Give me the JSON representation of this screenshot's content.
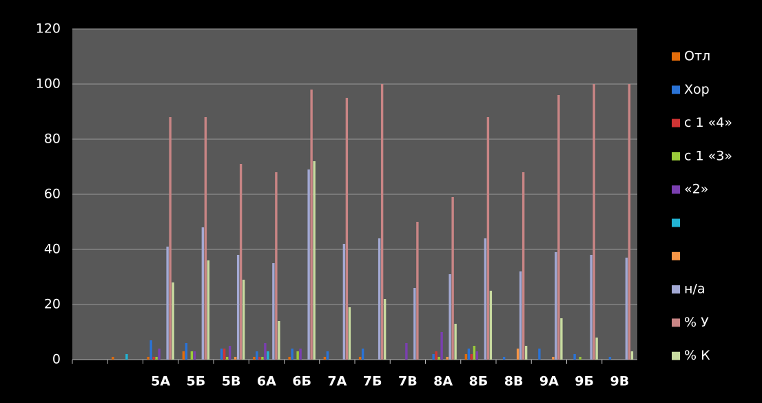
{
  "chart_data": {
    "type": "bar",
    "categories": [
      null,
      null,
      "5А",
      "5Б",
      "5В",
      "6А",
      "6Б",
      "7А",
      "7Б",
      "7В",
      "8А",
      "8Б",
      "8В",
      "9А",
      "9Б",
      "9В"
    ],
    "series": [
      {
        "name": "Отл",
        "color": "#e36c0a",
        "values": [
          0,
          1,
          1,
          3,
          0,
          1,
          1,
          1,
          1,
          0,
          0,
          2,
          0,
          0,
          0,
          0
        ]
      },
      {
        "name": "Хор",
        "color": "#2a73d6",
        "values": [
          0,
          0,
          7,
          6,
          4,
          3,
          4,
          3,
          4,
          0,
          2,
          4,
          1,
          4,
          2,
          1
        ]
      },
      {
        "name": "с 1 «4»",
        "color": "#d03434",
        "values": [
          0,
          0,
          1,
          0,
          4,
          1,
          0,
          0,
          0,
          0,
          3,
          2,
          0,
          0,
          0,
          0
        ]
      },
      {
        "name": "с 1 «3»",
        "color": "#9bcb3a",
        "values": [
          0,
          0,
          1,
          3,
          1,
          1,
          3,
          0,
          0,
          0,
          1,
          5,
          0,
          0,
          1,
          0
        ]
      },
      {
        "name": "«2»",
        "color": "#7a3fb0",
        "values": [
          0,
          0,
          4,
          3,
          5,
          6,
          4,
          0,
          0,
          6,
          10,
          3,
          0,
          0,
          0,
          0
        ]
      },
      {
        "name": null,
        "color": "#22b4d4",
        "values": [
          0,
          2,
          0,
          0,
          0,
          3,
          0,
          0,
          0,
          0,
          0,
          0,
          0,
          0,
          0,
          0
        ]
      },
      {
        "name": null,
        "color": "#f79646",
        "values": [
          0,
          0,
          0,
          0,
          1,
          0,
          0,
          0,
          0,
          0,
          1,
          0,
          4,
          1,
          0,
          0
        ]
      },
      {
        "name": "н/а",
        "color": "#a3a9d4",
        "values": [
          0,
          0,
          41,
          48,
          38,
          35,
          69,
          42,
          44,
          26,
          31,
          44,
          32,
          39,
          38,
          37
        ]
      },
      {
        "name": "% У",
        "color": "#c98585",
        "values": [
          0,
          0,
          88,
          88,
          71,
          68,
          98,
          95,
          100,
          50,
          59,
          88,
          68,
          96,
          100,
          100
        ]
      },
      {
        "name": "% К",
        "color": "#c8dba0",
        "values": [
          0,
          0,
          28,
          36,
          29,
          14,
          72,
          19,
          22,
          0,
          13,
          25,
          5,
          15,
          8,
          3
        ]
      }
    ],
    "ylim": [
      0,
      120
    ],
    "yticks": [
      0,
      20,
      40,
      60,
      80,
      100,
      120
    ],
    "grid": true,
    "legend": "right"
  }
}
